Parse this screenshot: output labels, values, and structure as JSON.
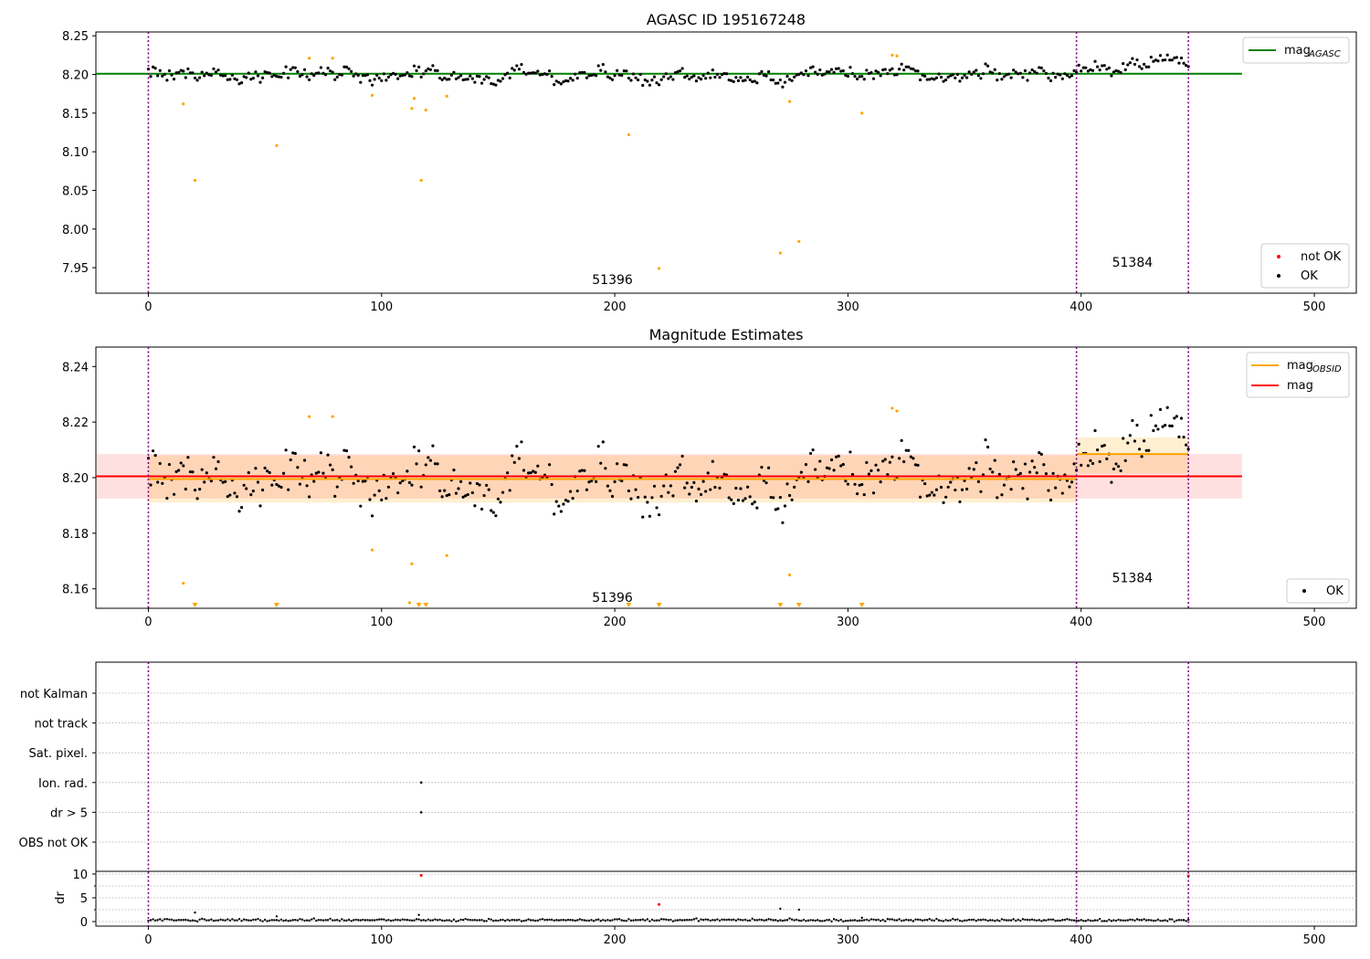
{
  "chart_data": [
    {
      "type": "scatter",
      "title": "AGASC ID 195167248",
      "xlim": [
        -22.5,
        518
      ],
      "ylim": [
        7.917,
        8.255
      ],
      "xticks": [
        0,
        100,
        200,
        300,
        400,
        500
      ],
      "yticks": [
        7.95,
        8.0,
        8.05,
        8.1,
        8.15,
        8.2,
        8.25
      ],
      "yticks_labels": [
        "7.95",
        "8.00",
        "8.05",
        "8.10",
        "8.15",
        "8.20",
        "8.25"
      ],
      "obsid_boundaries": [
        0,
        398,
        446
      ],
      "obsid_labels": [
        {
          "text": "51396",
          "x": 199,
          "y": 7.935
        },
        {
          "text": "51384",
          "x": 422,
          "y": 7.957
        }
      ],
      "mag_agasc": {
        "value": 8.201,
        "x_range": [
          -22.5,
          469
        ]
      },
      "legend_upper": {
        "position": "top-right",
        "series": "mag",
        "subscript": "AGASC",
        "color": "#008000"
      },
      "legend_lower": {
        "position": "bottom-right",
        "items": [
          {
            "label": "not OK",
            "color": "#ff0000"
          },
          {
            "label": "OK",
            "color": "#000000"
          }
        ]
      },
      "outliers": [
        [
          15,
          8.162
        ],
        [
          20,
          8.063
        ],
        [
          55,
          8.108
        ],
        [
          69,
          8.221
        ],
        [
          79,
          8.221
        ],
        [
          96,
          8.173
        ],
        [
          113,
          8.156
        ],
        [
          114,
          8.169
        ],
        [
          117,
          8.063
        ],
        [
          119,
          8.154
        ],
        [
          128,
          8.172
        ],
        [
          206,
          8.122
        ],
        [
          219,
          7.949
        ],
        [
          271,
          7.969
        ],
        [
          275,
          8.165
        ],
        [
          279,
          7.984
        ],
        [
          306,
          8.15
        ],
        [
          319,
          8.225
        ],
        [
          321,
          8.224
        ]
      ]
    },
    {
      "type": "scatter",
      "title": "Magnitude Estimates",
      "xlim": [
        -22.5,
        518
      ],
      "ylim": [
        8.153,
        8.247
      ],
      "xticks": [
        0,
        100,
        200,
        300,
        400,
        500
      ],
      "yticks": [
        8.16,
        8.18,
        8.2,
        8.22,
        8.24
      ],
      "yticks_labels": [
        "8.16",
        "8.18",
        "8.20",
        "8.22",
        "8.24"
      ],
      "obsid_labels": [
        {
          "text": "51396",
          "x": 199,
          "y": 8.157
        },
        {
          "text": "51384",
          "x": 422,
          "y": 8.164
        }
      ],
      "mag": {
        "value": 8.2005,
        "band": [
          8.1925,
          8.2085
        ],
        "x_range": [
          -22.5,
          469
        ],
        "color": "#ff0000"
      },
      "mag_obsid": [
        {
          "x_range": [
            0,
            398
          ],
          "value": 8.1995,
          "band": [
            8.191,
            8.208
          ]
        },
        {
          "x_range": [
            398,
            446
          ],
          "value": 8.2085,
          "band": [
            8.2015,
            8.2145
          ]
        }
      ],
      "outliers": [
        [
          15,
          8.162
        ],
        [
          69,
          8.222
        ],
        [
          79,
          8.222
        ],
        [
          96,
          8.174
        ],
        [
          113,
          8.169
        ],
        [
          128,
          8.172
        ],
        [
          275,
          8.165
        ],
        [
          319,
          8.225
        ],
        [
          321,
          8.224
        ],
        [
          112,
          8.155
        ]
      ],
      "arrows_bottom": [
        20,
        55,
        116,
        119,
        206,
        219,
        271,
        279,
        306
      ],
      "legend_upper": {
        "position": "top-right",
        "items": [
          {
            "label": "mag",
            "subscript": "OBSID",
            "color": "#ffa500"
          },
          {
            "label": "mag",
            "color": "#ff0000"
          }
        ]
      },
      "legend_lower": {
        "position": "bottom-right",
        "items": [
          {
            "label": "OK",
            "color": "#000000"
          }
        ]
      }
    },
    {
      "type": "scatter",
      "xlim": [
        -22.5,
        518
      ],
      "flag_labels": [
        "not Kalman",
        "not track",
        "Sat. pixel.",
        "Ion. rad.",
        "dr > 5",
        "OBS not OK"
      ],
      "flag_points": [
        {
          "flag": "Ion. rad.",
          "x": 117
        },
        {
          "flag": "dr > 5",
          "x": 117
        }
      ],
      "dr": {
        "ylabel": "dr",
        "ylim": [
          -0.5,
          11
        ],
        "yticks": [
          0,
          5,
          10
        ],
        "yticks_labels": [
          "0",
          "5",
          "10"
        ],
        "outliers": [
          [
            20,
            1.9
          ],
          [
            55,
            1.1
          ],
          [
            116,
            1.4
          ],
          [
            271,
            2.7
          ],
          [
            279,
            2.5
          ],
          [
            306,
            0.8
          ]
        ],
        "not_ok": [
          [
            117,
            9.7
          ],
          [
            219,
            3.6
          ],
          [
            446,
            9.6
          ]
        ]
      },
      "xticks": [
        0,
        100,
        200,
        300,
        400,
        500
      ],
      "xticks_labels": [
        "0",
        "100",
        "200",
        "300",
        "400",
        "500"
      ]
    }
  ]
}
